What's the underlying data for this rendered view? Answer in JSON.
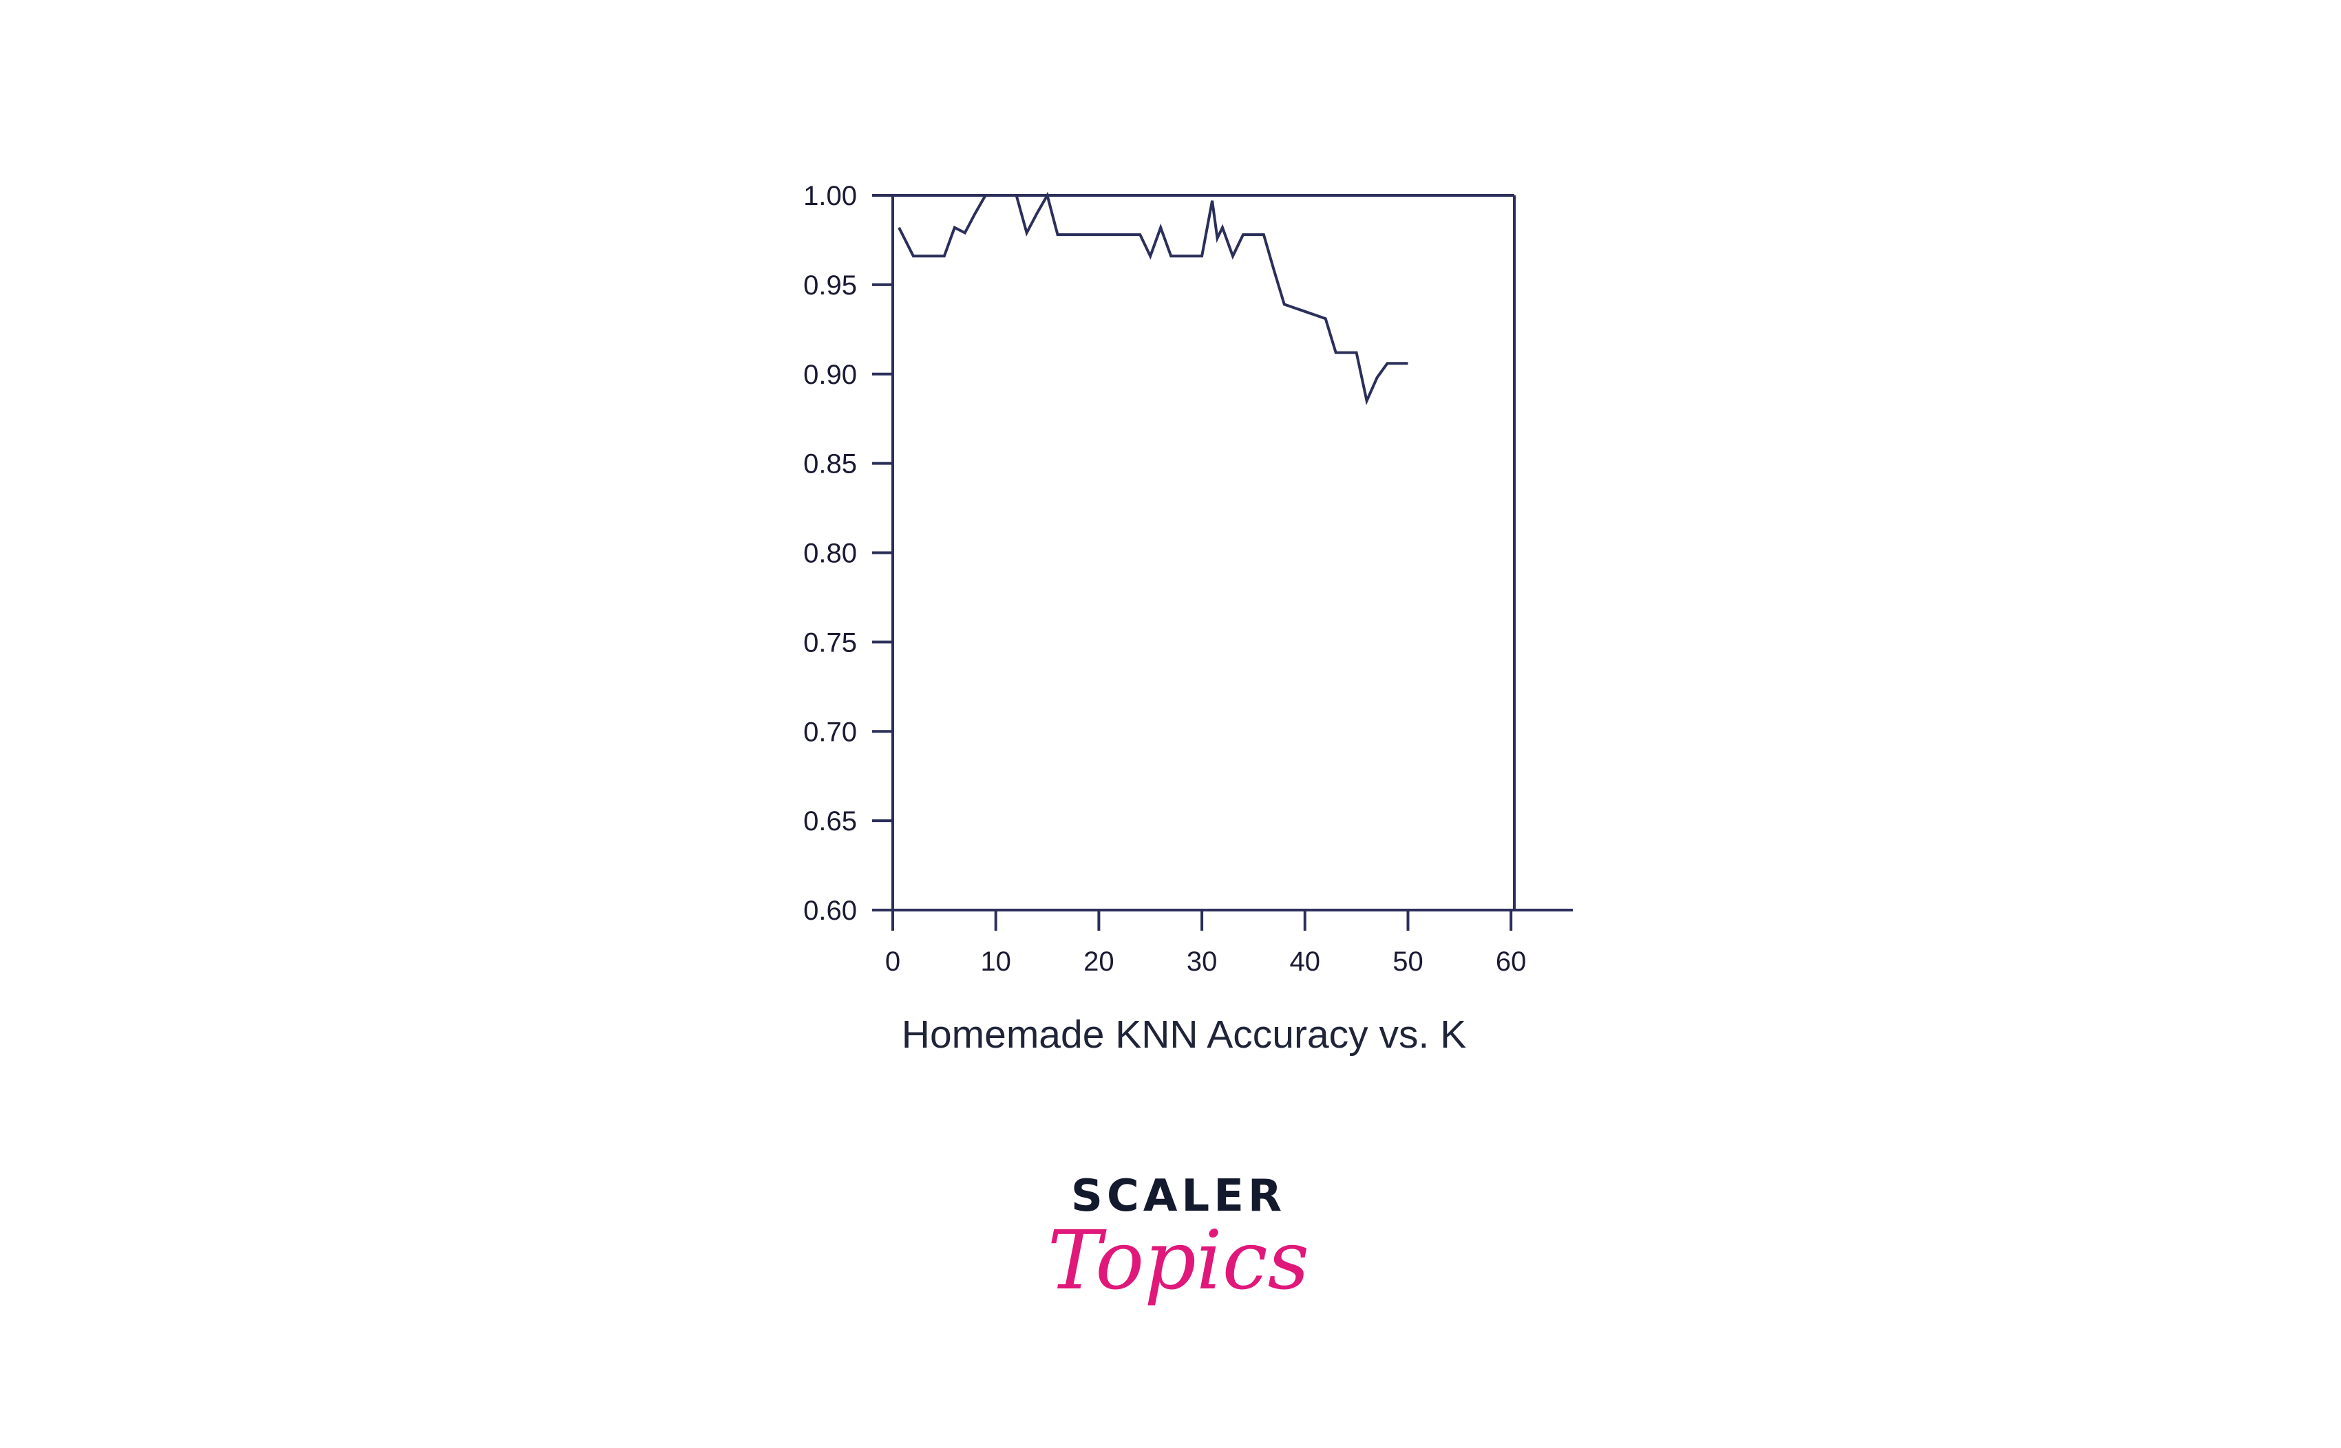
{
  "chart_data": {
    "type": "line",
    "title": "Homemade KNN Accuracy vs. K",
    "xlabel": "",
    "ylabel": "",
    "xlim": [
      0,
      66
    ],
    "ylim": [
      0.6,
      1.0
    ],
    "x_ticks": [
      0,
      10,
      20,
      30,
      40,
      50,
      60
    ],
    "y_ticks": [
      0.6,
      0.65,
      0.7,
      0.75,
      0.8,
      0.85,
      0.9,
      0.95,
      1.0
    ],
    "x_tick_labels": [
      "0",
      "10",
      "20",
      "30",
      "40",
      "50",
      "60"
    ],
    "y_tick_labels": [
      "0.60",
      "0.65",
      "0.70",
      "0.75",
      "0.80",
      "0.85",
      "0.90",
      "0.95",
      "1.00"
    ],
    "grid": false,
    "colors": {
      "line": "#2b2f5a",
      "axis": "#2b2f5a"
    },
    "series": [
      {
        "x": [
          0.6,
          2,
          3,
          4,
          5,
          6,
          7,
          8,
          9,
          10,
          11,
          12,
          13,
          14,
          15,
          16,
          17,
          18,
          19,
          20,
          21,
          22,
          23,
          24,
          25,
          26,
          27,
          28,
          29,
          30,
          31,
          31.5,
          32,
          33,
          34,
          35,
          36,
          37,
          38,
          39,
          40,
          41,
          42,
          43,
          44,
          45,
          46,
          47,
          48,
          49,
          50
        ],
        "y": [
          0.982,
          0.966,
          0.966,
          0.966,
          0.966,
          0.982,
          0.979,
          0.99,
          1.0,
          1.0,
          1.0,
          1.0,
          0.979,
          0.99,
          1.0,
          0.978,
          0.978,
          0.978,
          0.978,
          0.978,
          0.978,
          0.978,
          0.978,
          0.978,
          0.966,
          0.982,
          0.966,
          0.966,
          0.966,
          0.966,
          0.997,
          0.976,
          0.982,
          0.966,
          0.978,
          0.978,
          0.978,
          0.958,
          0.939,
          0.937,
          0.935,
          0.933,
          0.931,
          0.912,
          0.912,
          0.912,
          0.885,
          0.898,
          0.906,
          0.906,
          0.906
        ]
      }
    ]
  },
  "logo": {
    "top": "SCALER",
    "bottom": "Topics"
  }
}
